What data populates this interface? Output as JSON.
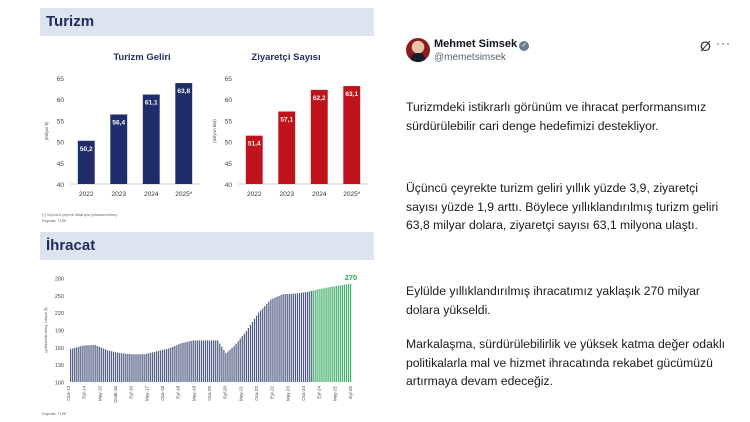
{
  "infographic": {
    "section1_title": "Turizm",
    "section2_title": "İhracat",
    "source_note_1": "(*) Üçüncü çeyrek itibarıyla yıllıklandırılmış",
    "source_note_2": "Kaynak: TÜİK",
    "source_note_3": "Kaynak: TÜİK"
  },
  "chart_data": [
    {
      "type": "bar",
      "title": "Turizm Geliri",
      "ylabel": "(milyar $)",
      "categories": [
        "2022",
        "2023",
        "2024",
        "2025*"
      ],
      "values": [
        50.2,
        56.4,
        61.1,
        63.8
      ],
      "value_labels": [
        "50,2",
        "56,4",
        "61,1",
        "63,8"
      ],
      "yticks": [
        "40",
        "45",
        "50",
        "55",
        "60",
        "65"
      ],
      "ylim": [
        40,
        65
      ],
      "color": "#1f2d6b"
    },
    {
      "type": "bar",
      "title": "Ziyaretçi Sayısı",
      "ylabel": "(milyon kişi)",
      "categories": [
        "2022",
        "2023",
        "2024",
        "2025*"
      ],
      "values": [
        51.4,
        57.1,
        62.2,
        63.1
      ],
      "value_labels": [
        "51,4",
        "57,1",
        "62,2",
        "63,1"
      ],
      "yticks": [
        "40",
        "45",
        "50",
        "55",
        "60",
        "65"
      ],
      "ylim": [
        40,
        65
      ],
      "color": "#c0141c"
    },
    {
      "type": "bar",
      "title": "",
      "ylabel": "(yıllıklandırılmış, milyar $)",
      "yticks": [
        "100",
        "130",
        "160",
        "190",
        "220",
        "250",
        "280"
      ],
      "ylim": [
        100,
        280
      ],
      "end_label": "270",
      "xticks": [
        "Oca-14",
        "Eyl-14",
        "May-15",
        "Ocak-16",
        "Eyl-16",
        "May-17",
        "Oca-18",
        "Eyl-18",
        "May-19",
        "Oca-20",
        "Eyl-20",
        "May-21",
        "Oca-22",
        "Eyl-22",
        "May-23",
        "Oca-24",
        "Eyl-24",
        "May-25",
        "Eyl-25"
      ],
      "series_colors": {
        "old": "#3c4a72",
        "new": "#2ea65a"
      },
      "anchors": [
        [
          0,
          157
        ],
        [
          6,
          163
        ],
        [
          12,
          164
        ],
        [
          18,
          155
        ],
        [
          24,
          150
        ],
        [
          30,
          148
        ],
        [
          36,
          148
        ],
        [
          42,
          153
        ],
        [
          48,
          158
        ],
        [
          54,
          167
        ],
        [
          60,
          172
        ],
        [
          66,
          172
        ],
        [
          72,
          172
        ],
        [
          76,
          150
        ],
        [
          80,
          162
        ],
        [
          86,
          188
        ],
        [
          92,
          220
        ],
        [
          98,
          243
        ],
        [
          104,
          252
        ],
        [
          110,
          253
        ],
        [
          116,
          256
        ],
        [
          122,
          261
        ],
        [
          128,
          265
        ],
        [
          137,
          270
        ]
      ],
      "green_from_index": 119
    }
  ],
  "tweet": {
    "name": "Mehmet Simsek",
    "verified_symbol": "✓",
    "handle": "@memetsimsek",
    "grok_symbol": "Ø",
    "menu_symbol": "···",
    "paragraphs": [
      "Turizmdeki istikrarlı görünüm ve ihracat performansımız sürdürülebilir cari denge hedefimizi destekliyor.",
      "Üçüncü çeyrekte turizm geliri yıllık yüzde 3,9, ziyaretçi sayısı yüzde 1,9 arttı. Böylece yıllıklandırılmış turizm geliri 63,8 milyar dolara, ziyaretçi sayısı 63,1 milyona ulaştı.",
      "Eylülde yıllıklandırılmış ihracatımız yaklaşık 270 milyar dolara yükseldi.",
      "Markalaşma, sürdürülebilirlik ve yüksek katma değer odaklı politikalarla mal ve hizmet ihracatında rekabet gücümüzü artırmaya devam edeceğiz."
    ]
  }
}
